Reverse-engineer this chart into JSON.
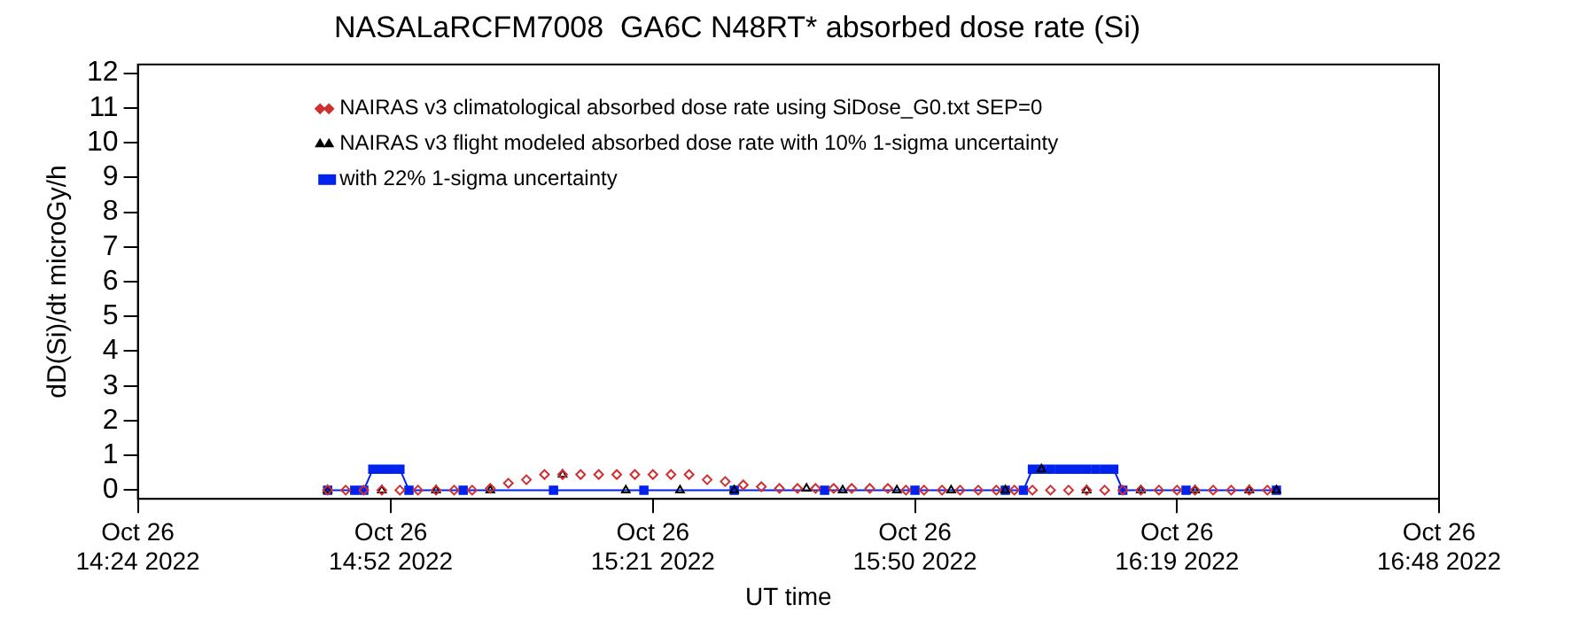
{
  "chart_data": {
    "type": "scatter",
    "title": "NASALaRCFM7008  GA6C N48RT* absorbed dose rate (Si)",
    "xlabel": "UT time",
    "ylabel": "dD(Si)/dt microGy/h",
    "xlim": [
      "2022-10-26T14:24",
      "2022-10-26T16:48"
    ],
    "xticks": [
      {
        "value": "2022-10-26T14:24",
        "label": "Oct 26\n14:24 2022"
      },
      {
        "value": "2022-10-26T14:52",
        "label": "Oct 26\n14:52 2022"
      },
      {
        "value": "2022-10-26T15:21",
        "label": "Oct 26\n15:21 2022"
      },
      {
        "value": "2022-10-26T15:50",
        "label": "Oct 26\n15:50 2022"
      },
      {
        "value": "2022-10-26T16:19",
        "label": "Oct 26\n16:19 2022"
      },
      {
        "value": "2022-10-26T16:48",
        "label": "Oct 26\n16:48 2022"
      }
    ],
    "ylim": [
      -0.25,
      12.25
    ],
    "yticks": [
      0,
      1,
      2,
      3,
      4,
      5,
      6,
      7,
      8,
      9,
      10,
      11,
      12
    ],
    "grid": false,
    "legend": "top",
    "series": [
      {
        "name": "NAIRAS v3 climatological absorbed dose rate using SiDose_G0.txt SEP=0",
        "marker": "diamond",
        "color": "#d03030",
        "x": [
          "2022-10-26T14:45",
          "2022-10-26T14:47",
          "2022-10-26T14:49",
          "2022-10-26T14:51",
          "2022-10-26T14:53",
          "2022-10-26T14:55",
          "2022-10-26T14:57",
          "2022-10-26T14:59",
          "2022-10-26T15:01",
          "2022-10-26T15:03",
          "2022-10-26T15:05",
          "2022-10-26T15:07",
          "2022-10-26T15:09",
          "2022-10-26T15:11",
          "2022-10-26T15:13",
          "2022-10-26T15:15",
          "2022-10-26T15:17",
          "2022-10-26T15:19",
          "2022-10-26T15:21",
          "2022-10-26T15:23",
          "2022-10-26T15:25",
          "2022-10-26T15:27",
          "2022-10-26T15:29",
          "2022-10-26T15:31",
          "2022-10-26T15:33",
          "2022-10-26T15:35",
          "2022-10-26T15:37",
          "2022-10-26T15:39",
          "2022-10-26T15:41",
          "2022-10-26T15:43",
          "2022-10-26T15:45",
          "2022-10-26T15:47",
          "2022-10-26T15:49",
          "2022-10-26T15:51",
          "2022-10-26T15:53",
          "2022-10-26T15:55",
          "2022-10-26T15:57",
          "2022-10-26T15:59",
          "2022-10-26T16:01",
          "2022-10-26T16:03",
          "2022-10-26T16:05",
          "2022-10-26T16:07",
          "2022-10-26T16:09",
          "2022-10-26T16:11",
          "2022-10-26T16:13",
          "2022-10-26T16:15",
          "2022-10-26T16:17",
          "2022-10-26T16:19",
          "2022-10-26T16:21",
          "2022-10-26T16:23",
          "2022-10-26T16:25",
          "2022-10-26T16:27",
          "2022-10-26T16:29"
        ],
        "values": [
          0,
          0,
          0,
          0,
          0,
          0,
          0,
          0,
          0,
          0.05,
          0.2,
          0.3,
          0.45,
          0.45,
          0.45,
          0.45,
          0.45,
          0.45,
          0.45,
          0.45,
          0.45,
          0.3,
          0.25,
          0.15,
          0.1,
          0.05,
          0.05,
          0.05,
          0.05,
          0.05,
          0.05,
          0.05,
          0,
          0,
          0,
          0,
          0,
          0,
          0,
          0,
          0,
          0,
          0,
          0,
          0,
          0,
          0,
          0,
          0,
          0,
          0,
          0,
          0
        ]
      },
      {
        "name": "NAIRAS v3 flight modeled absorbed dose rate with 10% 1-sigma uncertainty",
        "marker": "triangle",
        "color": "#000000",
        "x": [
          "2022-10-26T14:45",
          "2022-10-26T14:51",
          "2022-10-26T14:57",
          "2022-10-26T15:03",
          "2022-10-26T15:11",
          "2022-10-26T15:18",
          "2022-10-26T15:24",
          "2022-10-26T15:30",
          "2022-10-26T15:38",
          "2022-10-26T15:42",
          "2022-10-26T15:48",
          "2022-10-26T15:54",
          "2022-10-26T16:00",
          "2022-10-26T16:04",
          "2022-10-26T16:09",
          "2022-10-26T16:15",
          "2022-10-26T16:21",
          "2022-10-26T16:27",
          "2022-10-26T16:30"
        ],
        "values": [
          0,
          0,
          0,
          0,
          0.45,
          0,
          0,
          0,
          0.05,
          0,
          0,
          0,
          0,
          0.6,
          0,
          0,
          0,
          0,
          0
        ]
      },
      {
        "name": "with 22% 1-sigma uncertainty",
        "type": "line",
        "marker": "square",
        "line_style": "solid",
        "color": "#0022ee",
        "x": [
          "2022-10-26T14:45",
          "2022-10-26T14:48",
          "2022-10-26T14:49",
          "2022-10-26T14:50",
          "2022-10-26T14:51",
          "2022-10-26T14:52",
          "2022-10-26T14:53",
          "2022-10-26T14:54",
          "2022-10-26T15:00",
          "2022-10-26T15:10",
          "2022-10-26T15:20",
          "2022-10-26T15:30",
          "2022-10-26T15:40",
          "2022-10-26T15:50",
          "2022-10-26T16:00",
          "2022-10-26T16:02",
          "2022-10-26T16:03",
          "2022-10-26T16:04",
          "2022-10-26T16:05",
          "2022-10-26T16:06",
          "2022-10-26T16:07",
          "2022-10-26T16:08",
          "2022-10-26T16:09",
          "2022-10-26T16:10",
          "2022-10-26T16:11",
          "2022-10-26T16:12",
          "2022-10-26T16:13",
          "2022-10-26T16:20",
          "2022-10-26T16:30"
        ],
        "values": [
          0,
          0,
          0,
          0.6,
          0.6,
          0.6,
          0.6,
          0,
          0,
          0,
          0,
          0,
          0,
          0,
          0,
          0,
          0.6,
          0.6,
          0.6,
          0.6,
          0.6,
          0.6,
          0.6,
          0.6,
          0.6,
          0.6,
          0,
          0,
          0
        ]
      }
    ]
  }
}
